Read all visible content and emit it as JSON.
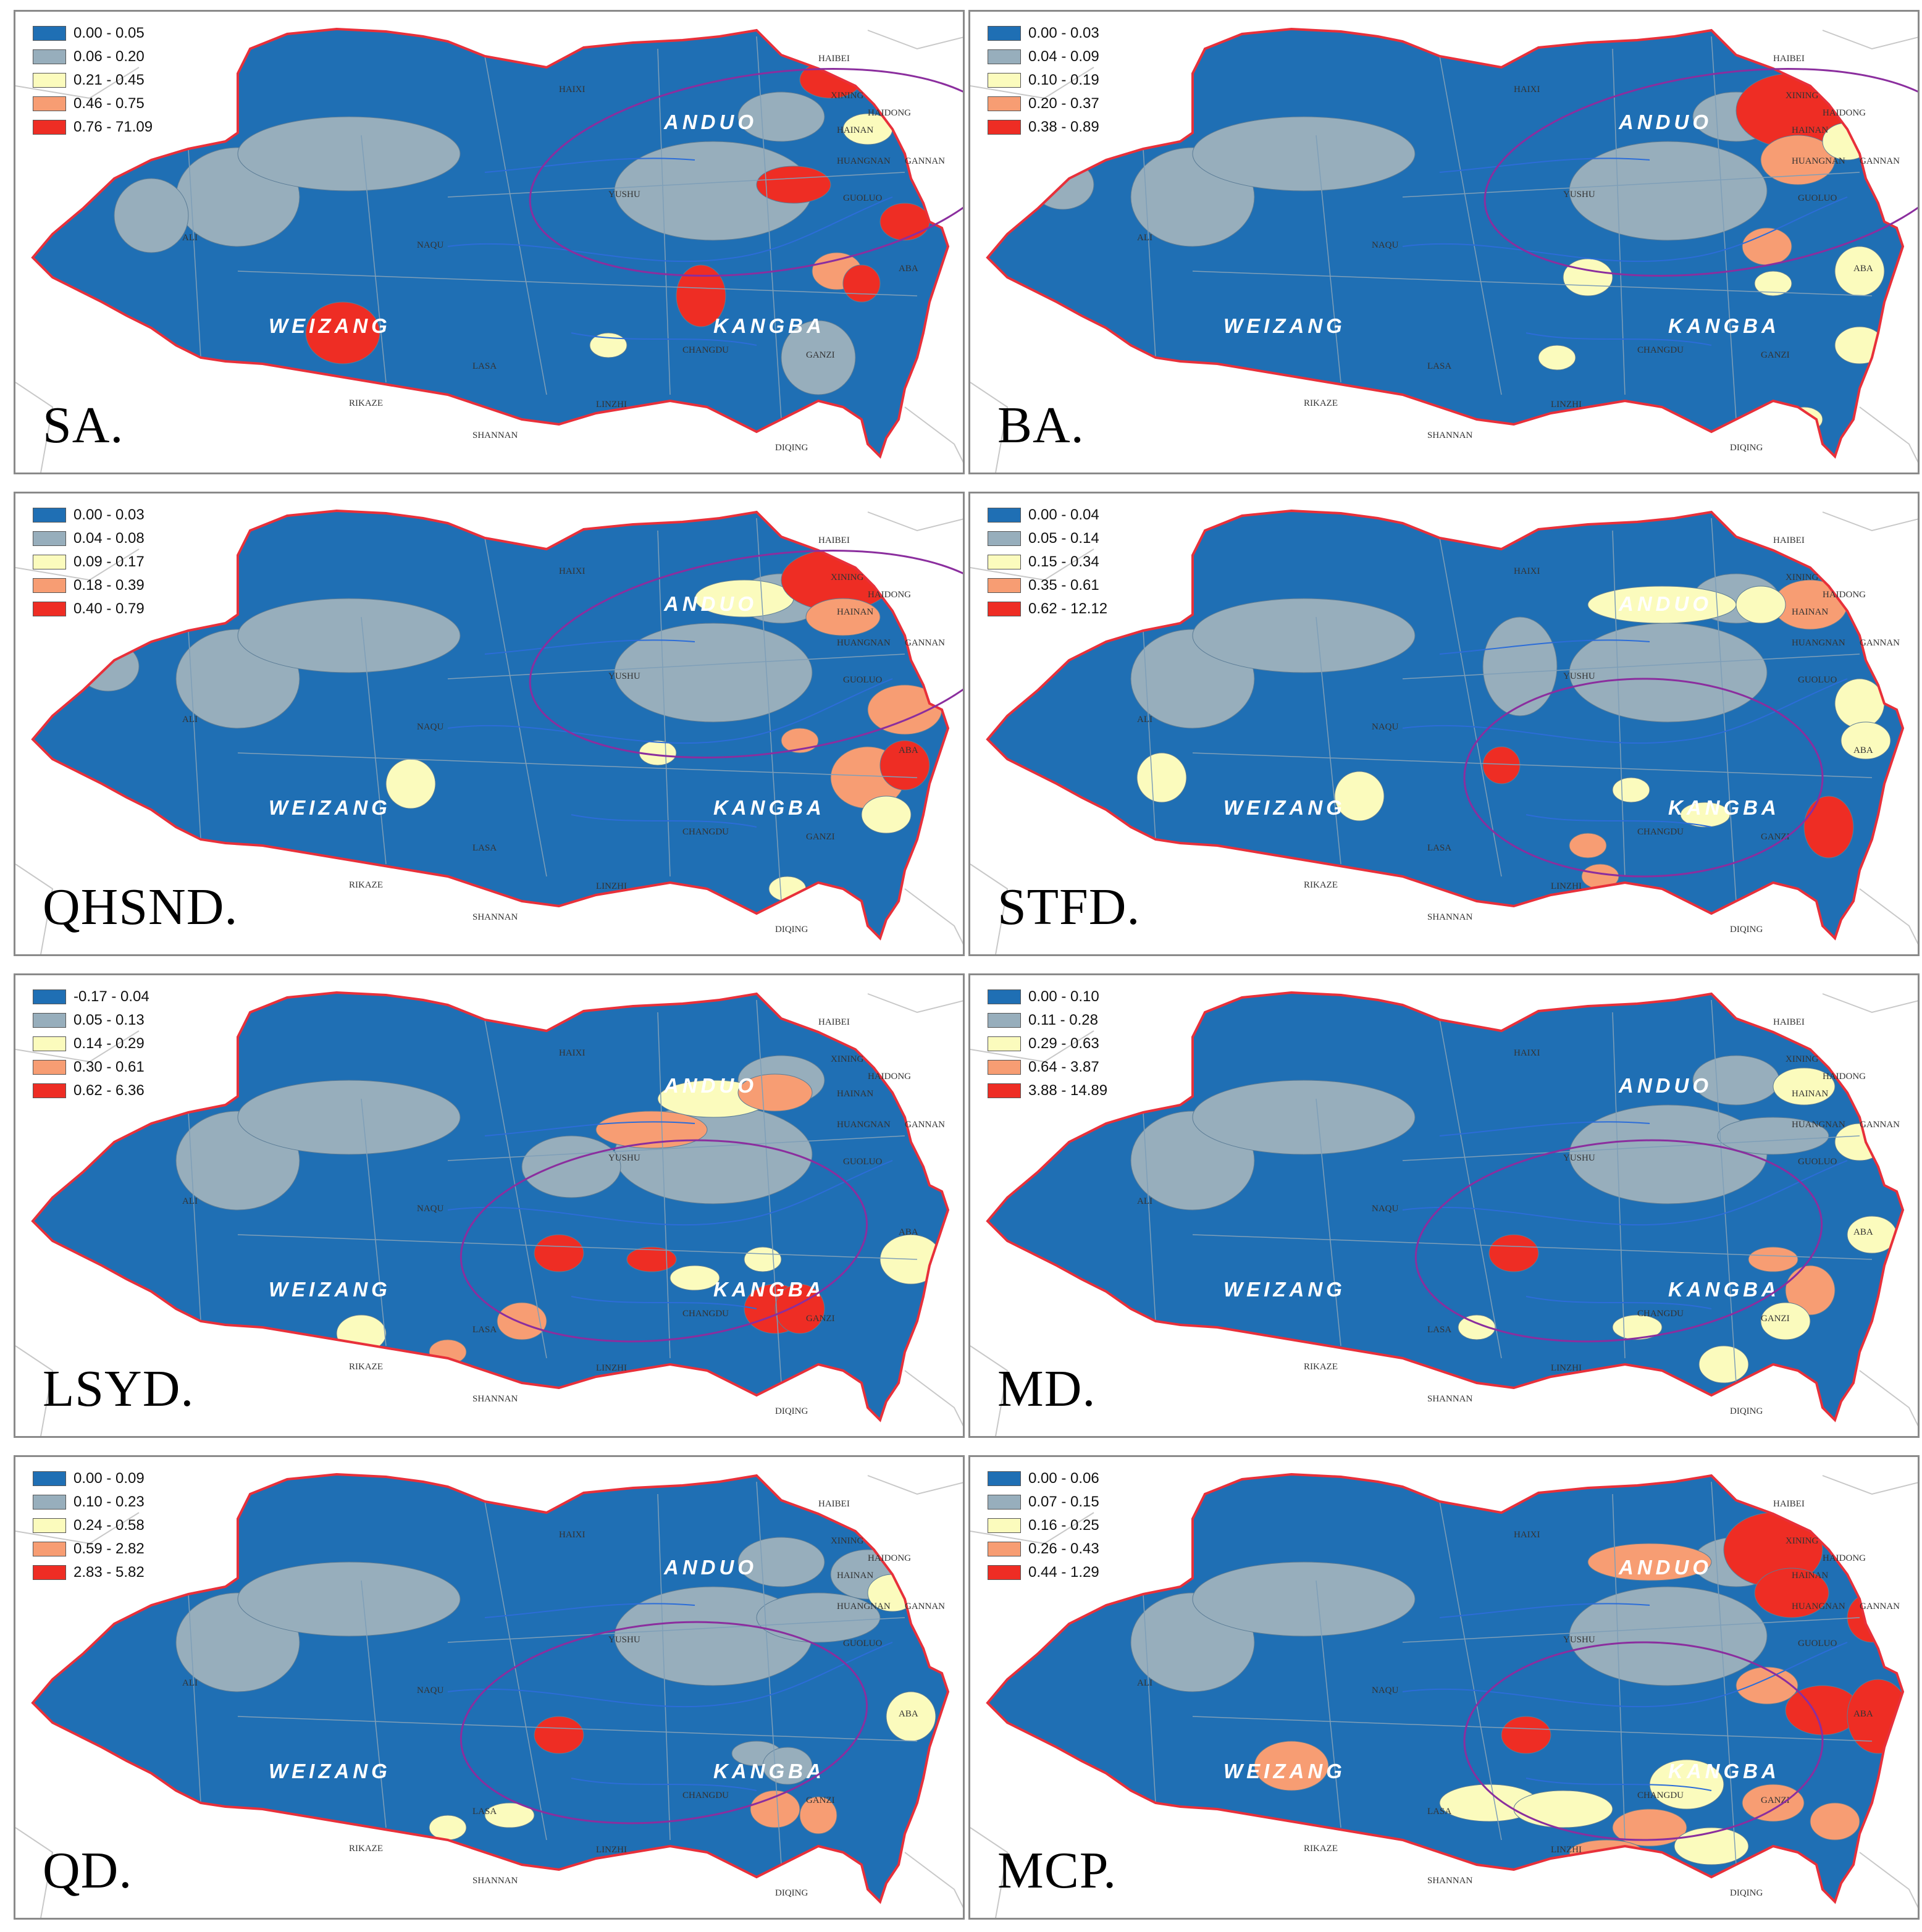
{
  "colors": {
    "class1": "#1f6fb4",
    "class2": "#97aebc",
    "class3": "#fbfbbd",
    "class4": "#f79d73",
    "class5": "#ee2d24",
    "boundary": "#e8303a",
    "ellipse": "#8b2e9e",
    "river": "#2c6dd8"
  },
  "region_labels": [
    "ANDUO",
    "WEIZANG",
    "KANGBA"
  ],
  "place_names": [
    "HAIBEI",
    "XINING",
    "HAIDONG",
    "HAIXI",
    "HAINAN",
    "HUANGNAN",
    "YUSHU",
    "GUOLUO",
    "GANNAN",
    "ALI",
    "NAQU",
    "ABA",
    "CHANGDU",
    "GANZI",
    "LASA",
    "RIKAZE",
    "LINZHI",
    "SHANNAN",
    "DIQING"
  ],
  "panels": [
    {
      "label": "SA.",
      "legend": [
        "0.00 - 0.05",
        "0.06 - 0.20",
        "0.21 - 0.45",
        "0.46 - 0.75",
        "0.76 - 71.09"
      ],
      "ellipse_focus": "north-east"
    },
    {
      "label": "BA.",
      "legend": [
        "0.00 - 0.03",
        "0.04 - 0.09",
        "0.10 - 0.19",
        "0.20 - 0.37",
        "0.38 - 0.89"
      ],
      "ellipse_focus": "north-east"
    },
    {
      "label": "QHSND.",
      "legend": [
        "0.00 - 0.03",
        "0.04 - 0.08",
        "0.09 - 0.17",
        "0.18 - 0.39",
        "0.40 - 0.79"
      ],
      "ellipse_focus": "north-east"
    },
    {
      "label": "STFD.",
      "legend": [
        "0.00 - 0.04",
        "0.05 - 0.14",
        "0.15 - 0.34",
        "0.35 - 0.61",
        "0.62 - 12.12"
      ],
      "ellipse_focus": "south-east"
    },
    {
      "label": "LSYD.",
      "legend": [
        "-0.17 - 0.04",
        "0.05 - 0.13",
        "0.14 - 0.29",
        "0.30 - 0.61",
        "0.62 - 6.36"
      ],
      "ellipse_focus": "central"
    },
    {
      "label": "MD.",
      "legend": [
        "0.00 - 0.10",
        "0.11 - 0.28",
        "0.29 - 0.63",
        "0.64 - 3.87",
        "3.88 - 14.89"
      ],
      "ellipse_focus": "central"
    },
    {
      "label": "QD.",
      "legend": [
        "0.00 - 0.09",
        "0.10 - 0.23",
        "0.24 - 0.58",
        "0.59 - 2.82",
        "2.83 - 5.82"
      ],
      "ellipse_focus": "central"
    },
    {
      "label": "MCP.",
      "legend": [
        "0.00 - 0.06",
        "0.07 - 0.15",
        "0.16 - 0.25",
        "0.26 - 0.43",
        "0.44 - 1.29"
      ],
      "ellipse_focus": "south-east"
    }
  ]
}
